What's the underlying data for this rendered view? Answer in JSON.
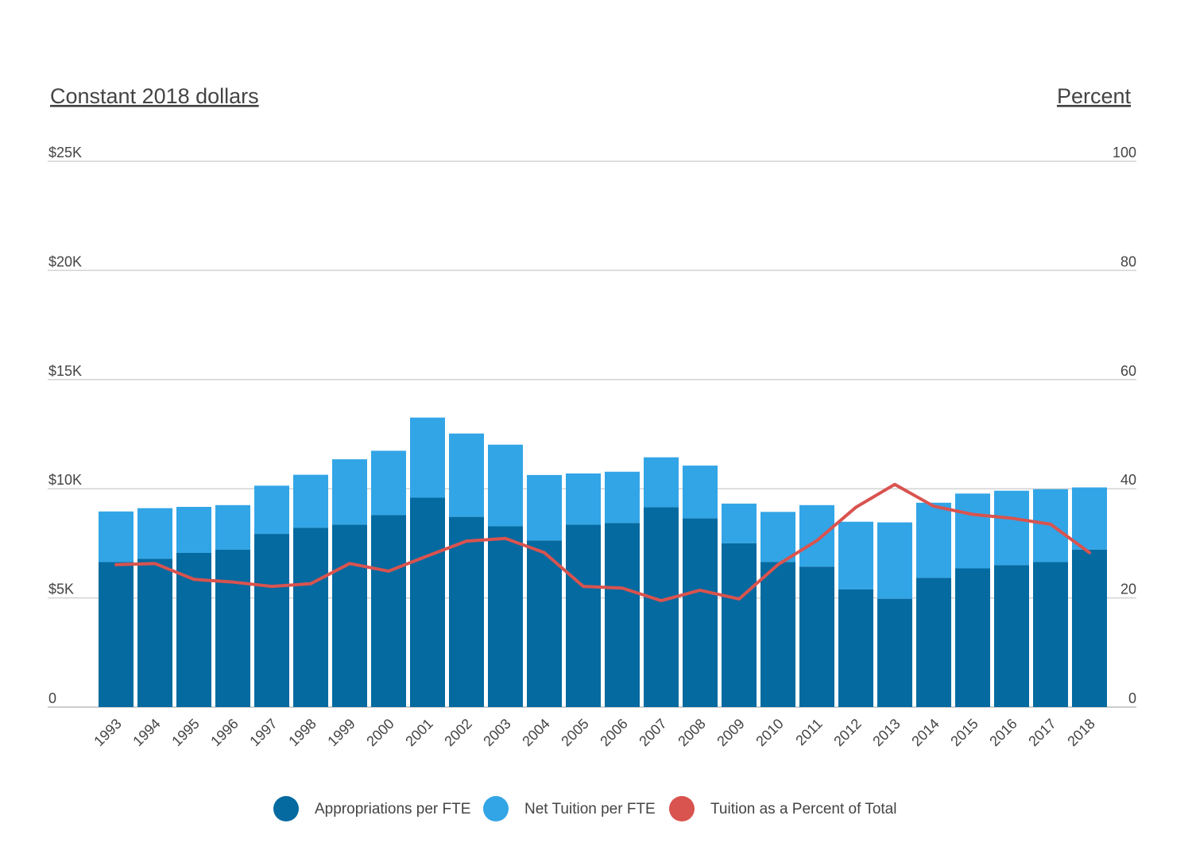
{
  "chart_data": {
    "type": "bar",
    "stacked": true,
    "left_axis_title": "Constant 2018 dollars",
    "right_axis_title": "Percent",
    "left_ticks": [
      "0",
      "$5K",
      "$10K",
      "$15K",
      "$20K",
      "$25K"
    ],
    "right_ticks": [
      "0",
      "20",
      "40",
      "60",
      "80",
      "100"
    ],
    "ylim_left": [
      0,
      25000
    ],
    "ylim_right": [
      0,
      100
    ],
    "grid": true,
    "legend_position": "bottom",
    "categories": [
      "1993",
      "1994",
      "1995",
      "1996",
      "1997",
      "1998",
      "1999",
      "2000",
      "2001",
      "2002",
      "2003",
      "2004",
      "2005",
      "2006",
      "2007",
      "2008",
      "2009",
      "2010",
      "2011",
      "2012",
      "2013",
      "2014",
      "2015",
      "2016",
      "2017",
      "2018"
    ],
    "series": [
      {
        "name": "Appropriations per FTE",
        "type": "bar",
        "axis": "left",
        "color": "#046aa0",
        "values": [
          6640,
          6790,
          7060,
          7210,
          7930,
          8210,
          8350,
          8790,
          9590,
          8710,
          8280,
          7630,
          8350,
          8430,
          9150,
          8640,
          7500,
          6640,
          6430,
          5390,
          4960,
          5920,
          6350,
          6500,
          6640,
          7210
        ]
      },
      {
        "name": "Net Tuition per FTE",
        "type": "bar",
        "axis": "left",
        "color": "#32a5e6",
        "values": [
          2320,
          2320,
          2110,
          2040,
          2210,
          2430,
          3000,
          2950,
          3670,
          3820,
          3740,
          3000,
          2350,
          2350,
          2290,
          2420,
          1820,
          2300,
          2820,
          3100,
          3500,
          3440,
          3430,
          3410,
          3340,
          2850
        ]
      },
      {
        "name": "Tuition as a Percent of Total",
        "type": "line",
        "axis": "right",
        "color": "#d9534f",
        "values": [
          26.1,
          26.3,
          23.4,
          22.9,
          22.1,
          22.6,
          26.3,
          24.9,
          27.7,
          30.4,
          30.9,
          28.3,
          22.1,
          21.8,
          19.5,
          21.4,
          19.8,
          26.1,
          30.5,
          36.6,
          40.8,
          36.8,
          35.3,
          34.6,
          33.5,
          28.3
        ]
      }
    ]
  }
}
